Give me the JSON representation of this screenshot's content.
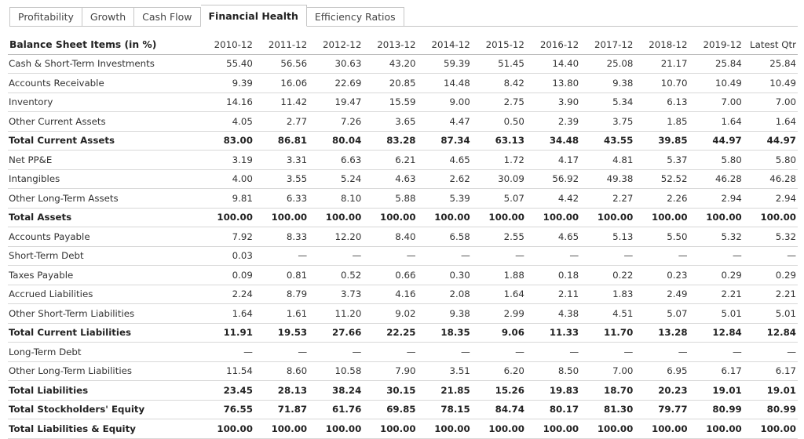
{
  "tabs": [
    {
      "label": "Profitability",
      "active": false
    },
    {
      "label": "Growth",
      "active": false
    },
    {
      "label": "Cash Flow",
      "active": false
    },
    {
      "label": "Financial Health",
      "active": true
    },
    {
      "label": "Efficiency Ratios",
      "active": false
    }
  ],
  "table": {
    "header_label": "Balance Sheet Items (in %)",
    "columns": [
      "2010-12",
      "2011-12",
      "2012-12",
      "2013-12",
      "2014-12",
      "2015-12",
      "2016-12",
      "2017-12",
      "2018-12",
      "2019-12",
      "Latest Qtr"
    ],
    "rows": [
      {
        "label": "Cash & Short-Term Investments",
        "total": false,
        "values": [
          "55.40",
          "56.56",
          "30.63",
          "43.20",
          "59.39",
          "51.45",
          "14.40",
          "25.08",
          "21.17",
          "25.84",
          "25.84"
        ]
      },
      {
        "label": "Accounts Receivable",
        "total": false,
        "values": [
          "9.39",
          "16.06",
          "22.69",
          "20.85",
          "14.48",
          "8.42",
          "13.80",
          "9.38",
          "10.70",
          "10.49",
          "10.49"
        ]
      },
      {
        "label": "Inventory",
        "total": false,
        "values": [
          "14.16",
          "11.42",
          "19.47",
          "15.59",
          "9.00",
          "2.75",
          "3.90",
          "5.34",
          "6.13",
          "7.00",
          "7.00"
        ]
      },
      {
        "label": "Other Current Assets",
        "total": false,
        "values": [
          "4.05",
          "2.77",
          "7.26",
          "3.65",
          "4.47",
          "0.50",
          "2.39",
          "3.75",
          "1.85",
          "1.64",
          "1.64"
        ]
      },
      {
        "label": "Total Current Assets",
        "total": true,
        "values": [
          "83.00",
          "86.81",
          "80.04",
          "83.28",
          "87.34",
          "63.13",
          "34.48",
          "43.55",
          "39.85",
          "44.97",
          "44.97"
        ]
      },
      {
        "label": "Net PP&E",
        "total": false,
        "values": [
          "3.19",
          "3.31",
          "6.63",
          "6.21",
          "4.65",
          "1.72",
          "4.17",
          "4.81",
          "5.37",
          "5.80",
          "5.80"
        ]
      },
      {
        "label": "Intangibles",
        "total": false,
        "values": [
          "4.00",
          "3.55",
          "5.24",
          "4.63",
          "2.62",
          "30.09",
          "56.92",
          "49.38",
          "52.52",
          "46.28",
          "46.28"
        ]
      },
      {
        "label": "Other Long-Term Assets",
        "total": false,
        "values": [
          "9.81",
          "6.33",
          "8.10",
          "5.88",
          "5.39",
          "5.07",
          "4.42",
          "2.27",
          "2.26",
          "2.94",
          "2.94"
        ]
      },
      {
        "label": "Total Assets",
        "total": true,
        "values": [
          "100.00",
          "100.00",
          "100.00",
          "100.00",
          "100.00",
          "100.00",
          "100.00",
          "100.00",
          "100.00",
          "100.00",
          "100.00"
        ]
      },
      {
        "label": "Accounts Payable",
        "total": false,
        "values": [
          "7.92",
          "8.33",
          "12.20",
          "8.40",
          "6.58",
          "2.55",
          "4.65",
          "5.13",
          "5.50",
          "5.32",
          "5.32"
        ]
      },
      {
        "label": "Short-Term Debt",
        "total": false,
        "values": [
          "0.03",
          "—",
          "—",
          "—",
          "—",
          "—",
          "—",
          "—",
          "—",
          "—",
          "—"
        ]
      },
      {
        "label": "Taxes Payable",
        "total": false,
        "values": [
          "0.09",
          "0.81",
          "0.52",
          "0.66",
          "0.30",
          "1.88",
          "0.18",
          "0.22",
          "0.23",
          "0.29",
          "0.29"
        ]
      },
      {
        "label": "Accrued Liabilities",
        "total": false,
        "values": [
          "2.24",
          "8.79",
          "3.73",
          "4.16",
          "2.08",
          "1.64",
          "2.11",
          "1.83",
          "2.49",
          "2.21",
          "2.21"
        ]
      },
      {
        "label": "Other Short-Term Liabilities",
        "total": false,
        "values": [
          "1.64",
          "1.61",
          "11.20",
          "9.02",
          "9.38",
          "2.99",
          "4.38",
          "4.51",
          "5.07",
          "5.01",
          "5.01"
        ]
      },
      {
        "label": "Total Current Liabilities",
        "total": true,
        "values": [
          "11.91",
          "19.53",
          "27.66",
          "22.25",
          "18.35",
          "9.06",
          "11.33",
          "11.70",
          "13.28",
          "12.84",
          "12.84"
        ]
      },
      {
        "label": "Long-Term Debt",
        "total": false,
        "values": [
          "—",
          "—",
          "—",
          "—",
          "—",
          "—",
          "—",
          "—",
          "—",
          "—",
          "—"
        ]
      },
      {
        "label": "Other Long-Term Liabilities",
        "total": false,
        "values": [
          "11.54",
          "8.60",
          "10.58",
          "7.90",
          "3.51",
          "6.20",
          "8.50",
          "7.00",
          "6.95",
          "6.17",
          "6.17"
        ]
      },
      {
        "label": "Total Liabilities",
        "total": true,
        "values": [
          "23.45",
          "28.13",
          "38.24",
          "30.15",
          "21.85",
          "15.26",
          "19.83",
          "18.70",
          "20.23",
          "19.01",
          "19.01"
        ]
      },
      {
        "label": "Total Stockholders' Equity",
        "total": true,
        "values": [
          "76.55",
          "71.87",
          "61.76",
          "69.85",
          "78.15",
          "84.74",
          "80.17",
          "81.30",
          "79.77",
          "80.99",
          "80.99"
        ]
      },
      {
        "label": "Total Liabilities & Equity",
        "total": true,
        "values": [
          "100.00",
          "100.00",
          "100.00",
          "100.00",
          "100.00",
          "100.00",
          "100.00",
          "100.00",
          "100.00",
          "100.00",
          "100.00"
        ]
      }
    ]
  }
}
